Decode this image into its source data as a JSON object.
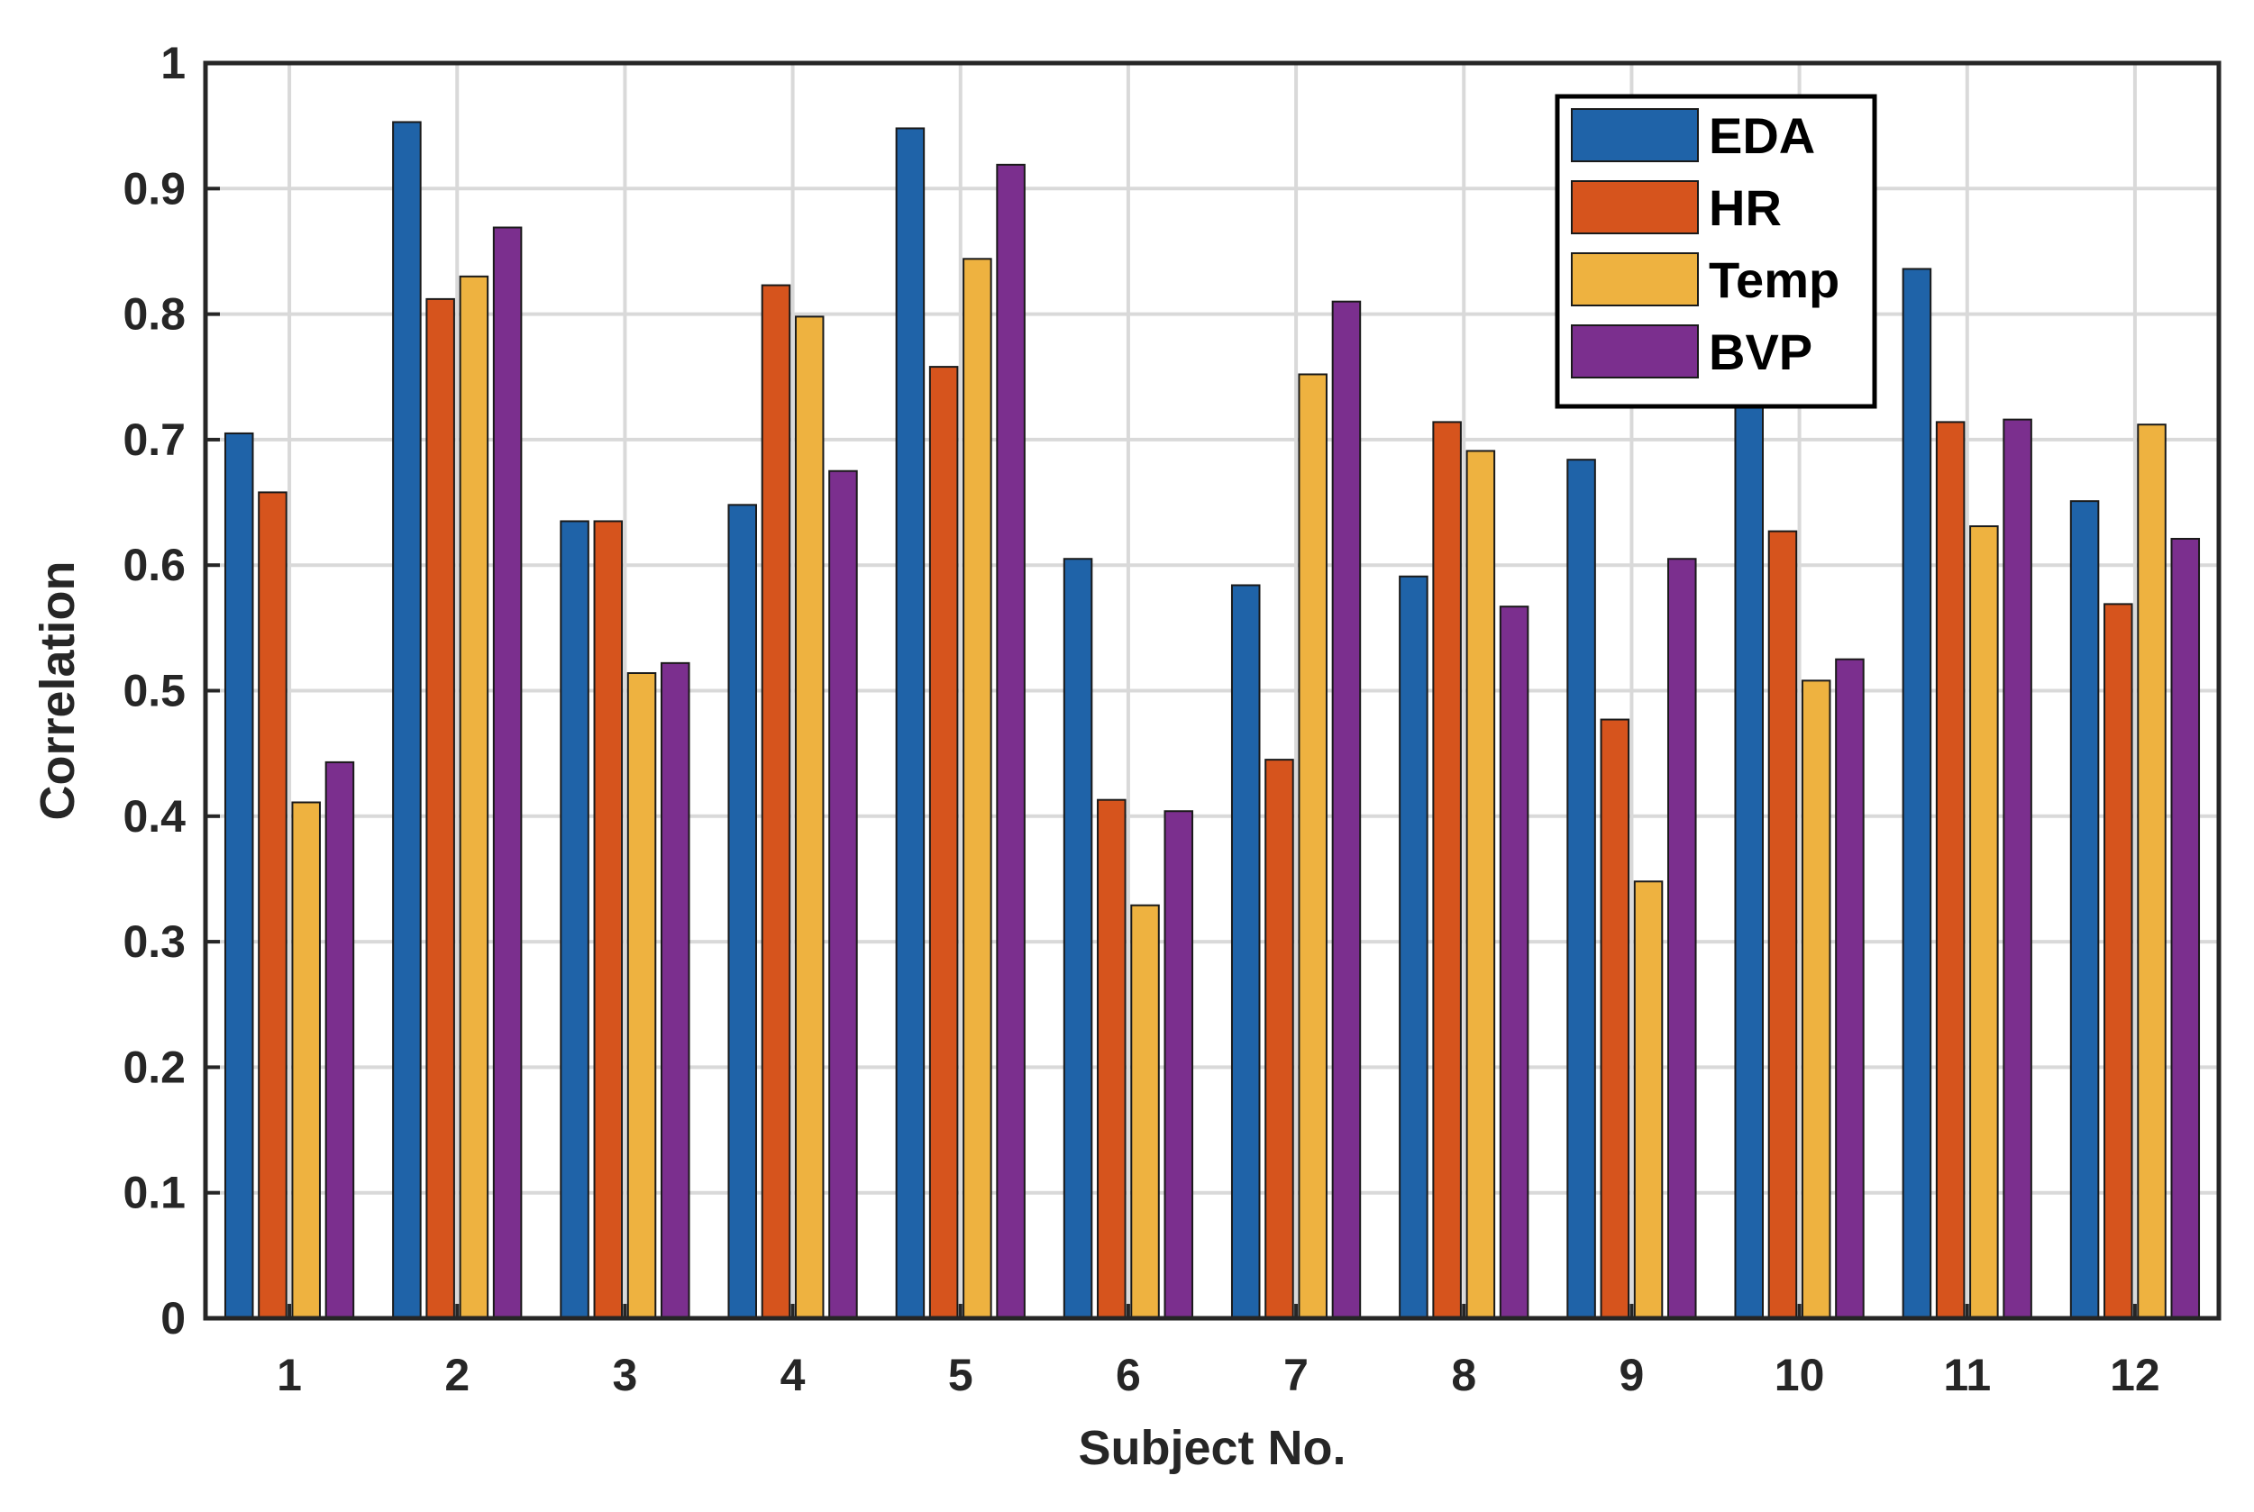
{
  "chart_data": {
    "type": "bar",
    "title": "",
    "xlabel": "Subject No.",
    "ylabel": "Correlation",
    "ylim": [
      0,
      1
    ],
    "grid": true,
    "legend_position": "top-right",
    "yticks": [
      "0",
      "0.1",
      "0.2",
      "0.3",
      "0.4",
      "0.5",
      "0.6",
      "0.7",
      "0.8",
      "0.9",
      "1"
    ],
    "categories": [
      "1",
      "2",
      "3",
      "4",
      "5",
      "6",
      "7",
      "8",
      "9",
      "10",
      "11",
      "12"
    ],
    "series": [
      {
        "name": "EDA",
        "color": "#1f63a8",
        "values": [
          0.705,
          0.953,
          0.635,
          0.648,
          0.948,
          0.605,
          0.584,
          0.591,
          0.684,
          0.733,
          0.836,
          0.651
        ]
      },
      {
        "name": "HR",
        "color": "#d6541d",
        "values": [
          0.658,
          0.812,
          0.635,
          0.823,
          0.758,
          0.413,
          0.445,
          0.714,
          0.477,
          0.627,
          0.714,
          0.569
        ]
      },
      {
        "name": "Temp",
        "color": "#eeb240",
        "values": [
          0.411,
          0.83,
          0.514,
          0.798,
          0.844,
          0.329,
          0.752,
          0.691,
          0.348,
          0.508,
          0.631,
          0.712
        ]
      },
      {
        "name": "BVP",
        "color": "#7b2f8e",
        "values": [
          0.443,
          0.869,
          0.522,
          0.675,
          0.919,
          0.404,
          0.81,
          0.567,
          0.605,
          0.525,
          0.716,
          0.621
        ]
      }
    ]
  }
}
